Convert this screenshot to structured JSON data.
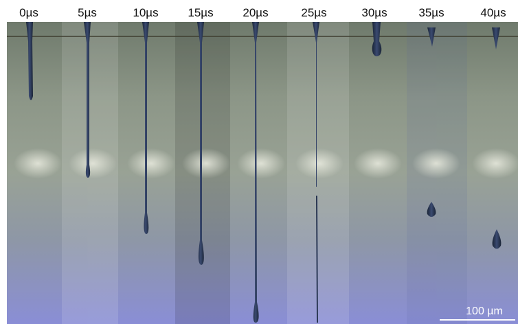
{
  "frames": [
    {
      "label": "0µs"
    },
    {
      "label": "5µs"
    },
    {
      "label": "10µs"
    },
    {
      "label": "15µs"
    },
    {
      "label": "20µs"
    },
    {
      "label": "25µs"
    },
    {
      "label": "30µs"
    },
    {
      "label": "35µs"
    },
    {
      "label": "40µs"
    }
  ],
  "scale_bar": {
    "label": "100 µm"
  }
}
